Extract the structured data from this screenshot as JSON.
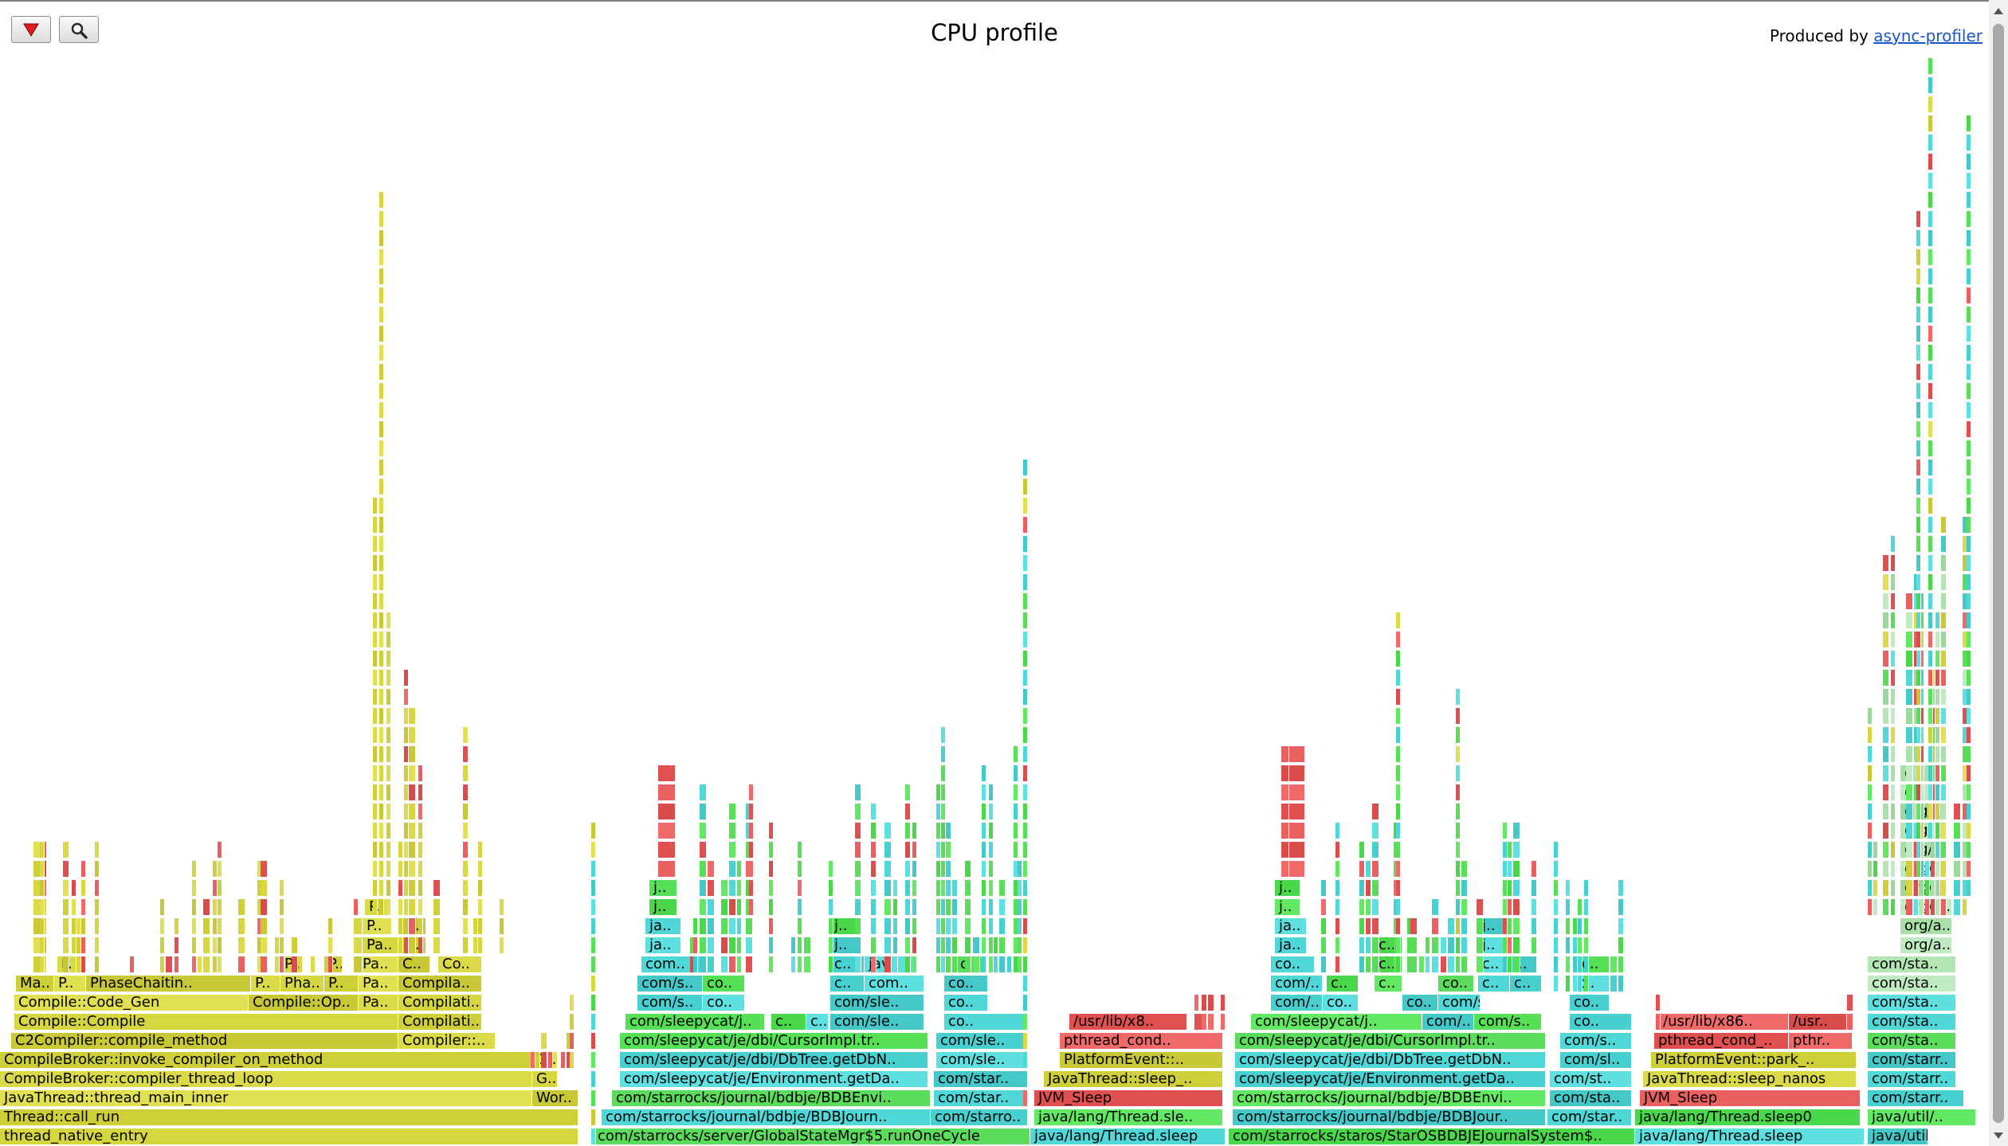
{
  "title": "CPU profile",
  "produced": {
    "prefix": "Produced by ",
    "link": "async-profiler"
  },
  "toolbar": {
    "reverse_icon": "red-triangle-down-icon",
    "search_icon": "magnifier-icon"
  },
  "colors": {
    "yellow": "#d8d844",
    "green": "#55e055",
    "aqua": "#50d8d8",
    "red": "#e86060",
    "pale_green": "#a8e0a8"
  },
  "frames": [
    {
      "d": 0,
      "a": 0,
      "b": 726,
      "t": "thread_native_entry",
      "c": "y"
    },
    {
      "d": 1,
      "a": 0,
      "b": 726,
      "t": "Thread::call_run",
      "c": "y"
    },
    {
      "d": 2,
      "a": 0,
      "b": 668,
      "t": "JavaThread::thread_main_inner",
      "c": "y"
    },
    {
      "d": 2,
      "a": 668,
      "b": 726,
      "t": "Wor..",
      "c": "y"
    },
    {
      "d": 3,
      "a": 0,
      "b": 668,
      "t": "CompileBroker::compiler_thread_loop",
      "c": "y"
    },
    {
      "d": 3,
      "a": 668,
      "b": 700,
      "t": "G..",
      "c": "y"
    },
    {
      "d": 4,
      "a": 0,
      "b": 668,
      "t": "CompileBroker::invoke_compiler_on_method",
      "c": "y"
    },
    {
      "d": 4,
      "a": 668,
      "b": 700,
      "t": "G..",
      "c": "y"
    },
    {
      "d": 5,
      "a": 14,
      "b": 500,
      "t": "C2Compiler::compile_method",
      "c": "y"
    },
    {
      "d": 5,
      "a": 500,
      "b": 622,
      "t": "Compiler::..",
      "c": "y"
    },
    {
      "d": 6,
      "a": 18,
      "b": 500,
      "t": "Compile::Compile",
      "c": "y"
    },
    {
      "d": 6,
      "a": 500,
      "b": 605,
      "t": "Compilati..",
      "c": "y"
    },
    {
      "d": 7,
      "a": 18,
      "b": 312,
      "t": "Compile::Code_Gen",
      "c": "y"
    },
    {
      "d": 7,
      "a": 312,
      "b": 450,
      "t": "Compile::Op..",
      "c": "y"
    },
    {
      "d": 7,
      "a": 450,
      "b": 500,
      "t": "Pa..",
      "c": "y"
    },
    {
      "d": 7,
      "a": 500,
      "b": 605,
      "t": "Compilati..",
      "c": "y"
    },
    {
      "d": 8,
      "a": 20,
      "b": 68,
      "t": "Ma..",
      "c": "y"
    },
    {
      "d": 8,
      "a": 68,
      "b": 108,
      "t": "P..",
      "c": "y"
    },
    {
      "d": 8,
      "a": 108,
      "b": 315,
      "t": "PhaseChaitin..",
      "c": "y"
    },
    {
      "d": 8,
      "a": 315,
      "b": 352,
      "t": "P..",
      "c": "y"
    },
    {
      "d": 8,
      "a": 352,
      "b": 407,
      "t": "Pha..",
      "c": "y"
    },
    {
      "d": 8,
      "a": 407,
      "b": 450,
      "t": "P..",
      "c": "y"
    },
    {
      "d": 8,
      "a": 450,
      "b": 500,
      "t": "Pa..",
      "c": "y"
    },
    {
      "d": 8,
      "a": 500,
      "b": 605,
      "t": "Compila..",
      "c": "y"
    },
    {
      "d": 9,
      "a": 72,
      "b": 108,
      "t": "P..",
      "c": "y"
    },
    {
      "d": 9,
      "a": 352,
      "b": 380,
      "t": "P..",
      "c": "y"
    },
    {
      "d": 9,
      "a": 407,
      "b": 430,
      "t": "P..",
      "c": "y"
    },
    {
      "d": 9,
      "a": 450,
      "b": 500,
      "t": "Pa..",
      "c": "y"
    },
    {
      "d": 9,
      "a": 500,
      "b": 540,
      "t": "C..",
      "c": "y"
    },
    {
      "d": 9,
      "a": 550,
      "b": 605,
      "t": "Co..",
      "c": "y"
    },
    {
      "d": 10,
      "a": 455,
      "b": 500,
      "t": "Pa..",
      "c": "y"
    },
    {
      "d": 10,
      "a": 505,
      "b": 535,
      "t": "I..",
      "c": "y"
    },
    {
      "d": 11,
      "a": 455,
      "b": 492,
      "t": "P..",
      "c": "y"
    },
    {
      "d": 11,
      "a": 505,
      "b": 535,
      "t": "I..",
      "c": "y"
    },
    {
      "d": 12,
      "a": 458,
      "b": 488,
      "t": "P..",
      "c": "y"
    },
    {
      "d": 0,
      "a": 745,
      "b": 1293,
      "t": "com/starrocks/server/GlobalStateMgr$5.runOneCycle",
      "c": "g"
    },
    {
      "d": 0,
      "a": 1293,
      "b": 1538,
      "t": "java/lang/Thread.sleep",
      "c": "a"
    },
    {
      "d": 0,
      "a": 1542,
      "b": 2052,
      "t": "com/starrocks/staros/StarOSBDBJEJournalSystem$..",
      "c": "g"
    },
    {
      "d": 0,
      "a": 2052,
      "b": 2340,
      "t": "java/lang/Thread.sleep",
      "c": "a"
    },
    {
      "d": 0,
      "a": 2344,
      "b": 2420,
      "t": "java/util/..",
      "c": "a"
    },
    {
      "d": 1,
      "a": 755,
      "b": 1168,
      "t": "com/starrocks/journal/bdbje/BDBJourn..",
      "c": "a"
    },
    {
      "d": 1,
      "a": 1168,
      "b": 1290,
      "t": "com/starro..",
      "c": "a"
    },
    {
      "d": 1,
      "a": 1298,
      "b": 1535,
      "t": "java/lang/Thread.sle..",
      "c": "g"
    },
    {
      "d": 1,
      "a": 1547,
      "b": 1940,
      "t": "com/starrocks/journal/bdbje/BDBJour..",
      "c": "a"
    },
    {
      "d": 1,
      "a": 1942,
      "b": 2048,
      "t": "com/star..",
      "c": "a"
    },
    {
      "d": 1,
      "a": 2052,
      "b": 2335,
      "t": "java/lang/Thread.sleep0",
      "c": "g"
    },
    {
      "d": 1,
      "a": 2344,
      "b": 2480,
      "t": "java/util/..",
      "c": "g"
    },
    {
      "d": 2,
      "a": 768,
      "b": 1168,
      "t": "com/starrocks/journal/bdbje/BDBEnvi..",
      "c": "g"
    },
    {
      "d": 2,
      "a": 1172,
      "b": 1290,
      "t": "com/star..",
      "c": "a"
    },
    {
      "d": 2,
      "a": 1298,
      "b": 1535,
      "t": "JVM_Sleep",
      "c": "r"
    },
    {
      "d": 2,
      "a": 1547,
      "b": 1940,
      "t": "com/starrocks/journal/bdbje/BDBEnvi..",
      "c": "g"
    },
    {
      "d": 2,
      "a": 1945,
      "b": 2048,
      "t": "com/sta..",
      "c": "a"
    },
    {
      "d": 2,
      "a": 2058,
      "b": 2335,
      "t": "JVM_Sleep",
      "c": "r"
    },
    {
      "d": 2,
      "a": 2344,
      "b": 2465,
      "t": "com/starr..",
      "c": "a"
    },
    {
      "d": 3,
      "a": 778,
      "b": 1165,
      "t": "com/sleepycat/je/Environment.getDa..",
      "c": "a"
    },
    {
      "d": 3,
      "a": 1172,
      "b": 1290,
      "t": "com/star..",
      "c": "a"
    },
    {
      "d": 3,
      "a": 1310,
      "b": 1535,
      "t": "JavaThread::sleep_..",
      "c": "y"
    },
    {
      "d": 3,
      "a": 1550,
      "b": 1940,
      "t": "com/sleepycat/je/Environment.getDa..",
      "c": "a"
    },
    {
      "d": 3,
      "a": 1945,
      "b": 2048,
      "t": "com/st..",
      "c": "a"
    },
    {
      "d": 3,
      "a": 2062,
      "b": 2330,
      "t": "JavaThread::sleep_nanos",
      "c": "y"
    },
    {
      "d": 3,
      "a": 2344,
      "b": 2455,
      "t": "com/starr..",
      "c": "a"
    },
    {
      "d": 4,
      "a": 778,
      "b": 1165,
      "t": "com/sleepycat/je/dbi/DbTree.getDbN..",
      "c": "a"
    },
    {
      "d": 4,
      "a": 1175,
      "b": 1290,
      "t": "com/sle..",
      "c": "a"
    },
    {
      "d": 4,
      "a": 1330,
      "b": 1535,
      "t": "PlatformEvent::..",
      "c": "y"
    },
    {
      "d": 4,
      "a": 1550,
      "b": 1940,
      "t": "com/sleepycat/je/dbi/DbTree.getDbN..",
      "c": "a"
    },
    {
      "d": 4,
      "a": 1958,
      "b": 2048,
      "t": "com/sl..",
      "c": "a"
    },
    {
      "d": 4,
      "a": 2072,
      "b": 2330,
      "t": "PlatformEvent::park_..",
      "c": "y"
    },
    {
      "d": 4,
      "a": 2344,
      "b": 2455,
      "t": "com/starr..",
      "c": "a"
    },
    {
      "d": 5,
      "a": 778,
      "b": 1165,
      "t": "com/sleepycat/je/dbi/CursorImpl.tr..",
      "c": "g"
    },
    {
      "d": 5,
      "a": 1175,
      "b": 1290,
      "t": "com/sle..",
      "c": "a"
    },
    {
      "d": 5,
      "a": 1330,
      "b": 1535,
      "t": "pthread_cond..",
      "c": "r"
    },
    {
      "d": 5,
      "a": 1550,
      "b": 1940,
      "t": "com/sleepycat/je/dbi/CursorImpl.tr..",
      "c": "g"
    },
    {
      "d": 5,
      "a": 1958,
      "b": 2048,
      "t": "com/s..",
      "c": "a"
    },
    {
      "d": 5,
      "a": 2076,
      "b": 2245,
      "t": "pthread_cond_..",
      "c": "r"
    },
    {
      "d": 5,
      "a": 2245,
      "b": 2325,
      "t": "pthr..",
      "c": "r"
    },
    {
      "d": 5,
      "a": 2344,
      "b": 2455,
      "t": "com/sta..",
      "c": "g"
    },
    {
      "d": 6,
      "a": 785,
      "b": 960,
      "t": "com/sleepycat/j..",
      "c": "g"
    },
    {
      "d": 6,
      "a": 968,
      "b": 1012,
      "t": "c..",
      "c": "g"
    },
    {
      "d": 6,
      "a": 1012,
      "b": 1040,
      "t": "c..",
      "c": "a"
    },
    {
      "d": 6,
      "a": 1042,
      "b": 1160,
      "t": "com/sle..",
      "c": "a"
    },
    {
      "d": 6,
      "a": 1185,
      "b": 1290,
      "t": "co..",
      "c": "a"
    },
    {
      "d": 6,
      "a": 1342,
      "b": 1490,
      "t": "/usr/lib/x8..",
      "c": "r"
    },
    {
      "d": 6,
      "a": 1570,
      "b": 1785,
      "t": "com/sleepycat/j..",
      "c": "g"
    },
    {
      "d": 6,
      "a": 1785,
      "b": 1850,
      "t": "com/..",
      "c": "a"
    },
    {
      "d": 6,
      "a": 1850,
      "b": 1935,
      "t": "com/s..",
      "c": "g"
    },
    {
      "d": 6,
      "a": 1970,
      "b": 2048,
      "t": "co..",
      "c": "a"
    },
    {
      "d": 6,
      "a": 2082,
      "b": 2245,
      "t": "/usr/lib/x86..",
      "c": "r"
    },
    {
      "d": 6,
      "a": 2245,
      "b": 2318,
      "t": "/usr..",
      "c": "r"
    },
    {
      "d": 6,
      "a": 2344,
      "b": 2455,
      "t": "com/sta..",
      "c": "a"
    },
    {
      "d": 7,
      "a": 800,
      "b": 882,
      "t": "com/s..",
      "c": "a"
    },
    {
      "d": 7,
      "a": 882,
      "b": 935,
      "t": "co..",
      "c": "a"
    },
    {
      "d": 7,
      "a": 1042,
      "b": 1160,
      "t": "com/sle..",
      "c": "a"
    },
    {
      "d": 7,
      "a": 1185,
      "b": 1240,
      "t": "co..",
      "c": "a"
    },
    {
      "d": 7,
      "a": 1595,
      "b": 1660,
      "t": "com/..",
      "c": "a"
    },
    {
      "d": 7,
      "a": 1660,
      "b": 1705,
      "t": "co..",
      "c": "a"
    },
    {
      "d": 7,
      "a": 1760,
      "b": 1805,
      "t": "co..",
      "c": "a"
    },
    {
      "d": 7,
      "a": 1805,
      "b": 1858,
      "t": "com/s..",
      "c": "a"
    },
    {
      "d": 7,
      "a": 1970,
      "b": 2020,
      "t": "co..",
      "c": "a"
    },
    {
      "d": 7,
      "a": 2344,
      "b": 2455,
      "t": "com/sta..",
      "c": "a"
    },
    {
      "d": 8,
      "a": 800,
      "b": 882,
      "t": "com/s..",
      "c": "a"
    },
    {
      "d": 8,
      "a": 882,
      "b": 935,
      "t": "co..",
      "c": "g"
    },
    {
      "d": 8,
      "a": 1042,
      "b": 1085,
      "t": "c..",
      "c": "a"
    },
    {
      "d": 8,
      "a": 1085,
      "b": 1160,
      "t": "com..",
      "c": "a"
    },
    {
      "d": 8,
      "a": 1185,
      "b": 1240,
      "t": "co..",
      "c": "a"
    },
    {
      "d": 8,
      "a": 1595,
      "b": 1660,
      "t": "com/..",
      "c": "a"
    },
    {
      "d": 8,
      "a": 1665,
      "b": 1705,
      "t": "c..",
      "c": "g"
    },
    {
      "d": 8,
      "a": 1725,
      "b": 1760,
      "t": "c..",
      "c": "g"
    },
    {
      "d": 8,
      "a": 1805,
      "b": 1850,
      "t": "co..",
      "c": "g"
    },
    {
      "d": 8,
      "a": 1855,
      "b": 1895,
      "t": "c..",
      "c": "a"
    },
    {
      "d": 8,
      "a": 1895,
      "b": 1935,
      "t": "c..",
      "c": "a"
    },
    {
      "d": 8,
      "a": 1975,
      "b": 2020,
      "t": "c..",
      "c": "a"
    },
    {
      "d": 8,
      "a": 2344,
      "b": 2455,
      "t": "com/sta..",
      "c": "p"
    },
    {
      "d": 9,
      "a": 805,
      "b": 880,
      "t": "com..",
      "c": "a"
    },
    {
      "d": 9,
      "a": 1042,
      "b": 1085,
      "t": "c..",
      "c": "a"
    },
    {
      "d": 9,
      "a": 1085,
      "b": 1150,
      "t": "jav..",
      "c": "a"
    },
    {
      "d": 9,
      "a": 1200,
      "b": 1238,
      "t": "c..",
      "c": "g"
    },
    {
      "d": 9,
      "a": 1595,
      "b": 1650,
      "t": "co..",
      "c": "a"
    },
    {
      "d": 9,
      "a": 1725,
      "b": 1760,
      "t": "c..",
      "c": "g"
    },
    {
      "d": 9,
      "a": 1855,
      "b": 1895,
      "t": "c..",
      "c": "a"
    },
    {
      "d": 9,
      "a": 1895,
      "b": 1930,
      "t": "j..",
      "c": "a"
    },
    {
      "d": 9,
      "a": 1980,
      "b": 2020,
      "t": "c..",
      "c": "g"
    },
    {
      "d": 9,
      "a": 2344,
      "b": 2455,
      "t": "com/sta..",
      "c": "p"
    },
    {
      "d": 10,
      "a": 810,
      "b": 855,
      "t": "ja..",
      "c": "a"
    },
    {
      "d": 10,
      "a": 1042,
      "b": 1075,
      "t": "j..",
      "c": "a"
    },
    {
      "d": 10,
      "a": 1600,
      "b": 1640,
      "t": "ja..",
      "c": "a"
    },
    {
      "d": 10,
      "a": 1725,
      "b": 1760,
      "t": "c..",
      "c": "g"
    },
    {
      "d": 10,
      "a": 1855,
      "b": 1890,
      "t": "j..",
      "c": "a"
    },
    {
      "d": 10,
      "a": 2385,
      "b": 2450,
      "t": "org/a..",
      "c": "p"
    },
    {
      "d": 11,
      "a": 810,
      "b": 855,
      "t": "ja..",
      "c": "a"
    },
    {
      "d": 11,
      "a": 1042,
      "b": 1075,
      "t": "j..",
      "c": "g"
    },
    {
      "d": 11,
      "a": 1600,
      "b": 1640,
      "t": "ja..",
      "c": "a"
    },
    {
      "d": 11,
      "a": 1855,
      "b": 1890,
      "t": "j..",
      "c": "a"
    },
    {
      "d": 11,
      "a": 2385,
      "b": 2450,
      "t": "org/a..",
      "c": "p"
    },
    {
      "d": 12,
      "a": 815,
      "b": 850,
      "t": "j..",
      "c": "g"
    },
    {
      "d": 12,
      "a": 1600,
      "b": 1632,
      "t": "j..",
      "c": "g"
    },
    {
      "d": 12,
      "a": 2385,
      "b": 2450,
      "t": "org/a..",
      "c": "p"
    },
    {
      "d": 13,
      "a": 815,
      "b": 850,
      "t": "j..",
      "c": "g"
    },
    {
      "d": 13,
      "a": 1600,
      "b": 1632,
      "t": "j..",
      "c": "g"
    },
    {
      "d": 13,
      "a": 2385,
      "b": 2440,
      "t": "org/..",
      "c": "p"
    },
    {
      "d": 14,
      "a": 2385,
      "b": 2440,
      "t": "org/..",
      "c": "p"
    },
    {
      "d": 15,
      "a": 2385,
      "b": 2440,
      "t": "org/..",
      "c": "p"
    },
    {
      "d": 16,
      "a": 2385,
      "b": 2440,
      "t": "org/..",
      "c": "p"
    },
    {
      "d": 17,
      "a": 2385,
      "b": 2440,
      "t": "org/..",
      "c": "p"
    },
    {
      "d": 18,
      "a": 2385,
      "b": 2425,
      "t": "o..",
      "c": "p"
    },
    {
      "d": 19,
      "a": 2385,
      "b": 2425,
      "t": "o..",
      "c": "p"
    }
  ]
}
